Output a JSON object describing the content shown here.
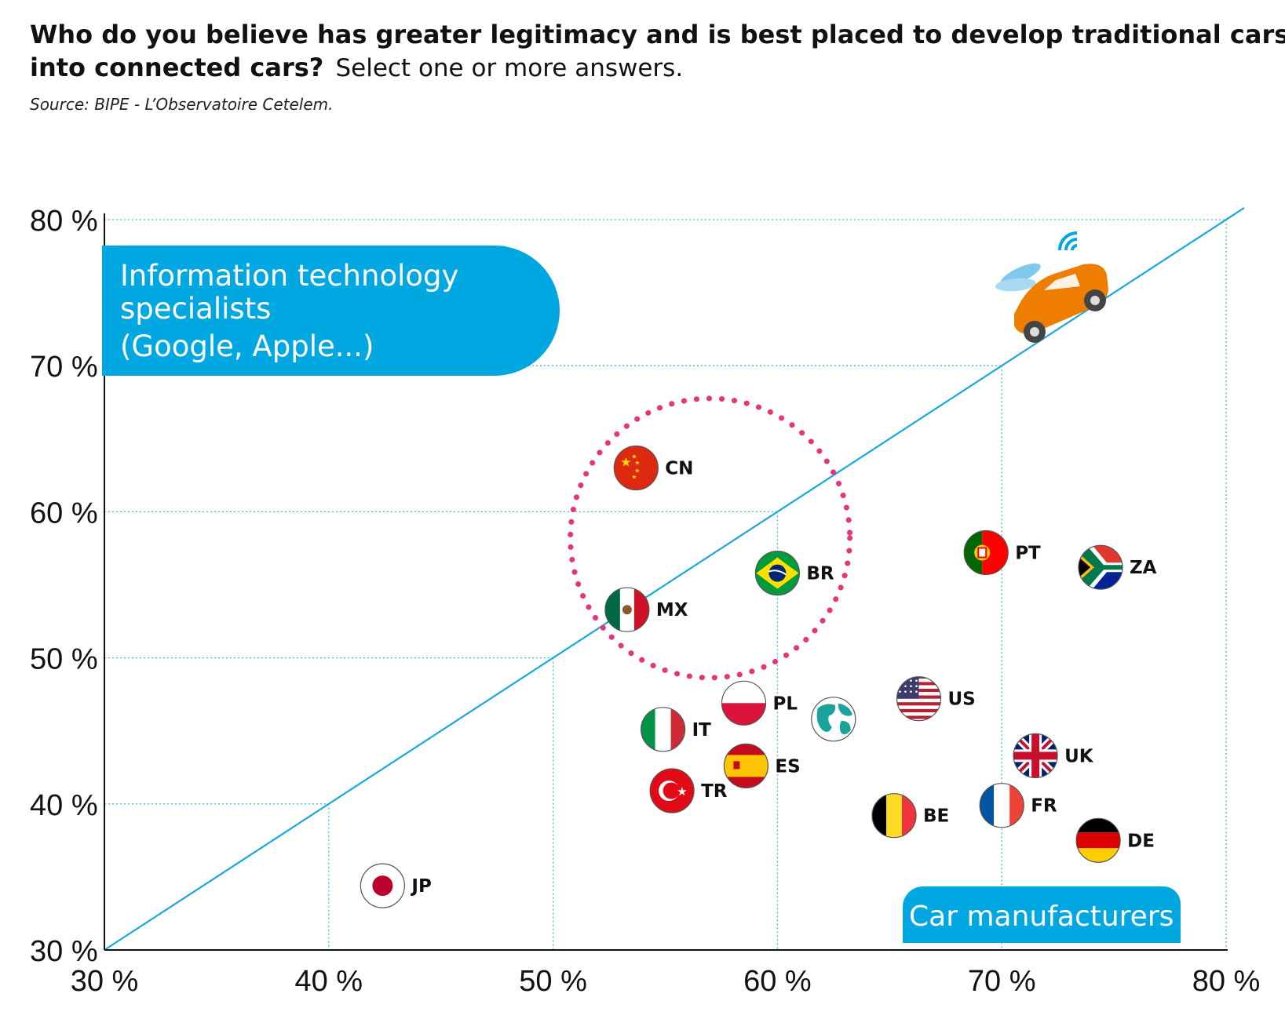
{
  "title": {
    "bold": "Who do you believe has greater legitimacy and is best placed to develop traditional cars",
    "bold2": "into connected cars?",
    "regular": "Select one or more answers."
  },
  "source": "Source: BIPE - L’Observatoire Cetelem.",
  "labels": {
    "it_specialists_line1": "Information technology",
    "it_specialists_line2": "specialists",
    "it_specialists_line3": "(Google, Apple...)",
    "car_manufacturers": "Car manufacturers"
  },
  "colors": {
    "accent": "#00a7e1",
    "highlight_circle": "#e6337a",
    "grid": "#3fb6e6",
    "car": "#ef7d00"
  },
  "chart_data": {
    "type": "scatter",
    "xlabel": "Car manufacturers",
    "ylabel": "Information technology specialists (Google, Apple...)",
    "xlim": [
      30,
      80
    ],
    "ylim": [
      30,
      80
    ],
    "xticks": [
      "30 %",
      "40 %",
      "50 %",
      "60 %",
      "70 %",
      "80 %"
    ],
    "yticks": [
      "30 %",
      "40 %",
      "50 %",
      "60 %",
      "70 %",
      "80 %"
    ],
    "diagonal": "y = x",
    "highlight_circle_center": [
      57,
      58.2
    ],
    "points": [
      {
        "code": "CN",
        "flag": "cn",
        "x": 53.7,
        "y": 63.0
      },
      {
        "code": "BR",
        "flag": "br",
        "x": 60.0,
        "y": 55.8
      },
      {
        "code": "MX",
        "flag": "mx",
        "x": 53.3,
        "y": 53.3
      },
      {
        "code": "PT",
        "flag": "pt",
        "x": 69.3,
        "y": 57.2
      },
      {
        "code": "ZA",
        "flag": "za",
        "x": 74.4,
        "y": 56.2
      },
      {
        "code": "PL",
        "flag": "pl",
        "x": 58.5,
        "y": 46.9
      },
      {
        "code": "",
        "flag": "globe",
        "x": 62.5,
        "y": 45.8
      },
      {
        "code": "US",
        "flag": "us",
        "x": 66.3,
        "y": 47.2
      },
      {
        "code": "IT",
        "flag": "it",
        "x": 54.9,
        "y": 45.1
      },
      {
        "code": "ES",
        "flag": "es",
        "x": 58.6,
        "y": 42.6
      },
      {
        "code": "TR",
        "flag": "tr",
        "x": 55.3,
        "y": 40.9
      },
      {
        "code": "UK",
        "flag": "uk",
        "x": 71.5,
        "y": 43.3
      },
      {
        "code": "FR",
        "flag": "fr",
        "x": 70.0,
        "y": 39.9
      },
      {
        "code": "BE",
        "flag": "be",
        "x": 65.2,
        "y": 39.2
      },
      {
        "code": "DE",
        "flag": "de",
        "x": 74.3,
        "y": 37.5
      },
      {
        "code": "JP",
        "flag": "jp",
        "x": 42.4,
        "y": 34.4
      }
    ]
  }
}
